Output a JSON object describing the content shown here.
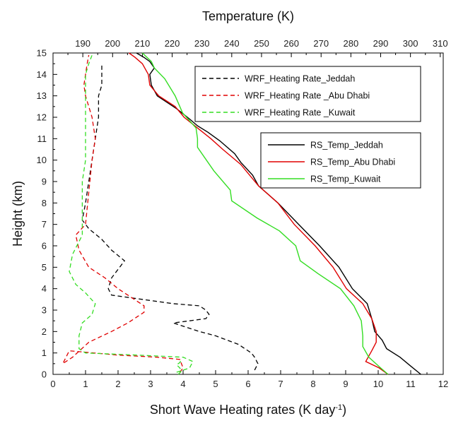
{
  "chart_data": {
    "type": "line",
    "title": "",
    "xlabel": "Short Wave Heating rates (K day",
    "xlabel_sup": "-1",
    "xlabel_end": ")",
    "x2label": "Temperature (K)",
    "ylabel": "Height (km)",
    "xlim": [
      0,
      12
    ],
    "x2lim": [
      180,
      311
    ],
    "ylim": [
      0,
      15
    ],
    "x_ticks": [
      "0",
      "1",
      "2",
      "3",
      "4",
      "5",
      "6",
      "7",
      "8",
      "9",
      "10",
      "11",
      "12"
    ],
    "x2_ticks": [
      "190",
      "200",
      "210",
      "220",
      "230",
      "240",
      "250",
      "260",
      "270",
      "280",
      "290",
      "300",
      "310"
    ],
    "y_ticks": [
      "0",
      "1",
      "2",
      "3",
      "4",
      "5",
      "6",
      "7",
      "8",
      "9",
      "10",
      "11",
      "12",
      "13",
      "14",
      "15"
    ],
    "grid": false,
    "heating_series": [
      {
        "name": "WRF_Heating Rate_Jeddah",
        "color": "#000000",
        "x": [
          6.2,
          6.3,
          6.2,
          6.1,
          5.7,
          5.0,
          4.5,
          4.1,
          3.7,
          4.7,
          4.8,
          4.7,
          4.5,
          3.7,
          1.8,
          1.7,
          1.8,
          2.2,
          1.8,
          1.5,
          1.1,
          0.9,
          1.0,
          1.1,
          1.2,
          1.3,
          1.4,
          1.4,
          1.5,
          1.5,
          1.5
        ],
        "y": [
          0.2,
          0.5,
          0.8,
          1.0,
          1.4,
          1.8,
          2.0,
          2.2,
          2.4,
          2.6,
          2.8,
          3.0,
          3.2,
          3.3,
          3.7,
          4.0,
          4.5,
          5.3,
          5.8,
          6.3,
          6.8,
          7.2,
          8.0,
          9.0,
          10.0,
          11.0,
          12.0,
          13.0,
          13.5,
          14.0,
          14.5
        ]
      },
      {
        "name": "WRF_Heating Rate _Abu Dhabi",
        "color": "#e00000",
        "x": [
          3.9,
          4.0,
          3.9,
          3.2,
          2.0,
          0.5,
          0.3,
          0.6,
          1.1,
          1.8,
          2.3,
          2.6,
          2.8,
          2.8,
          2.4,
          2.0,
          1.6,
          1.1,
          0.8,
          0.7,
          1.0,
          1.1,
          1.2,
          1.3,
          1.2,
          1.0,
          0.95,
          1.0,
          1.05,
          1.1
        ],
        "y": [
          0.1,
          0.3,
          0.7,
          0.8,
          0.9,
          1.1,
          0.5,
          0.8,
          1.5,
          2.0,
          2.4,
          2.7,
          2.9,
          3.2,
          3.6,
          4.0,
          4.5,
          5.0,
          5.8,
          6.5,
          7.0,
          8.5,
          10.0,
          11.0,
          12.0,
          13.0,
          13.5,
          14.0,
          14.5,
          14.9
        ]
      },
      {
        "name": "WRF_Heating Rate _Kuwait",
        "color": "#33dd22",
        "x": [
          3.8,
          4.2,
          4.3,
          4.0,
          2.6,
          1.0,
          0.8,
          0.8,
          0.9,
          1.2,
          1.3,
          1.0,
          0.7,
          0.5,
          0.6,
          0.9,
          0.9,
          0.9,
          0.9,
          1.0,
          1.0,
          1.0,
          1.0,
          1.0,
          1.0,
          1.1,
          1.2
        ],
        "y": [
          0.1,
          0.3,
          0.6,
          0.8,
          0.9,
          1.0,
          1.2,
          1.8,
          2.4,
          2.8,
          3.3,
          3.8,
          4.2,
          4.8,
          5.6,
          6.5,
          7.0,
          8.0,
          9.0,
          10.0,
          11.0,
          12.0,
          13.0,
          13.5,
          14.0,
          14.5,
          14.9
        ]
      },
      {
        "name": "",
        "color": "#33dd22",
        "x": [
          3.85,
          3.95,
          3.9,
          3.8,
          3.9,
          3.95
        ],
        "y": [
          0.0,
          0.15,
          0.3,
          0.45,
          0.55,
          0.7
        ]
      }
    ],
    "temp_series": [
      {
        "name": "RS_Temp_Jeddah",
        "color": "#000000",
        "x": [
          303.5,
          300.0,
          296.5,
          292.0,
          290.5,
          288.0,
          287.0,
          285.5,
          280.5,
          276.0,
          269.5,
          262.5,
          255.5,
          249.0,
          247.0,
          243.0,
          241.0,
          236.0,
          232.0,
          228.5,
          226.0,
          221.5,
          215.0,
          213.0,
          212.5,
          214.0,
          212.5,
          210.5,
          208.0
        ],
        "y": [
          0.0,
          0.4,
          0.8,
          1.2,
          1.6,
          2.0,
          2.6,
          3.3,
          4.0,
          5.0,
          6.0,
          7.0,
          8.0,
          8.8,
          9.3,
          9.9,
          10.3,
          10.9,
          11.3,
          11.6,
          11.9,
          12.4,
          13.0,
          13.5,
          14.0,
          14.3,
          14.6,
          14.8,
          15.0
        ]
      },
      {
        "name": "RS_Temp_Abu Dhabi",
        "color": "#e00000",
        "x": [
          292.5,
          289.5,
          285.0,
          287.0,
          288.5,
          288.5,
          287.0,
          284.0,
          278.5,
          274.0,
          268.0,
          261.0,
          255.5,
          249.0,
          246.0,
          243.0,
          237.0,
          233.0,
          228.5,
          224.0,
          221.0,
          215.5,
          212.5,
          212.0,
          210.0,
          207.5,
          205.5
        ],
        "y": [
          0.0,
          0.3,
          0.6,
          1.1,
          1.5,
          2.0,
          2.6,
          3.3,
          4.0,
          5.0,
          6.0,
          7.0,
          8.0,
          8.8,
          9.3,
          9.8,
          10.5,
          11.0,
          11.5,
          12.0,
          12.5,
          13.0,
          13.5,
          14.0,
          14.5,
          14.8,
          15.0
        ]
      },
      {
        "name": "RS_Temp_Kuwait",
        "color": "#33dd22",
        "x": [
          292.5,
          290.0,
          286.0,
          284.0,
          284.0,
          283.5,
          281.0,
          276.5,
          269.0,
          263.0,
          261.5,
          256.0,
          248.5,
          240.0,
          239.5,
          234.0,
          228.5,
          228.5,
          228.0,
          223.5,
          221.0,
          217.5,
          214.0,
          213.0,
          210.0
        ],
        "y": [
          0.0,
          0.3,
          0.8,
          1.3,
          1.8,
          2.5,
          3.2,
          4.0,
          4.7,
          5.3,
          6.0,
          6.7,
          7.3,
          8.1,
          8.6,
          9.5,
          10.6,
          11.0,
          11.5,
          12.2,
          13.0,
          13.8,
          14.3,
          14.6,
          15.0
        ]
      }
    ],
    "legend_upper": {
      "placement": "top-right",
      "entries": [
        {
          "label": "WRF_Heating Rate_Jeddah",
          "color": "#000000"
        },
        {
          "label": "WRF_Heating Rate _Abu Dhabi",
          "color": "#e00000"
        },
        {
          "label": "WRF_Heating Rate _Kuwait",
          "color": "#33dd22"
        }
      ]
    },
    "legend_lower": {
      "placement": "upper-right",
      "entries": [
        {
          "label": "RS_Temp_Jeddah",
          "color": "#000000"
        },
        {
          "label": "RS_Temp_Abu Dhabi",
          "color": "#e00000"
        },
        {
          "label": "RS_Temp_Kuwait",
          "color": "#33dd22"
        }
      ]
    }
  }
}
